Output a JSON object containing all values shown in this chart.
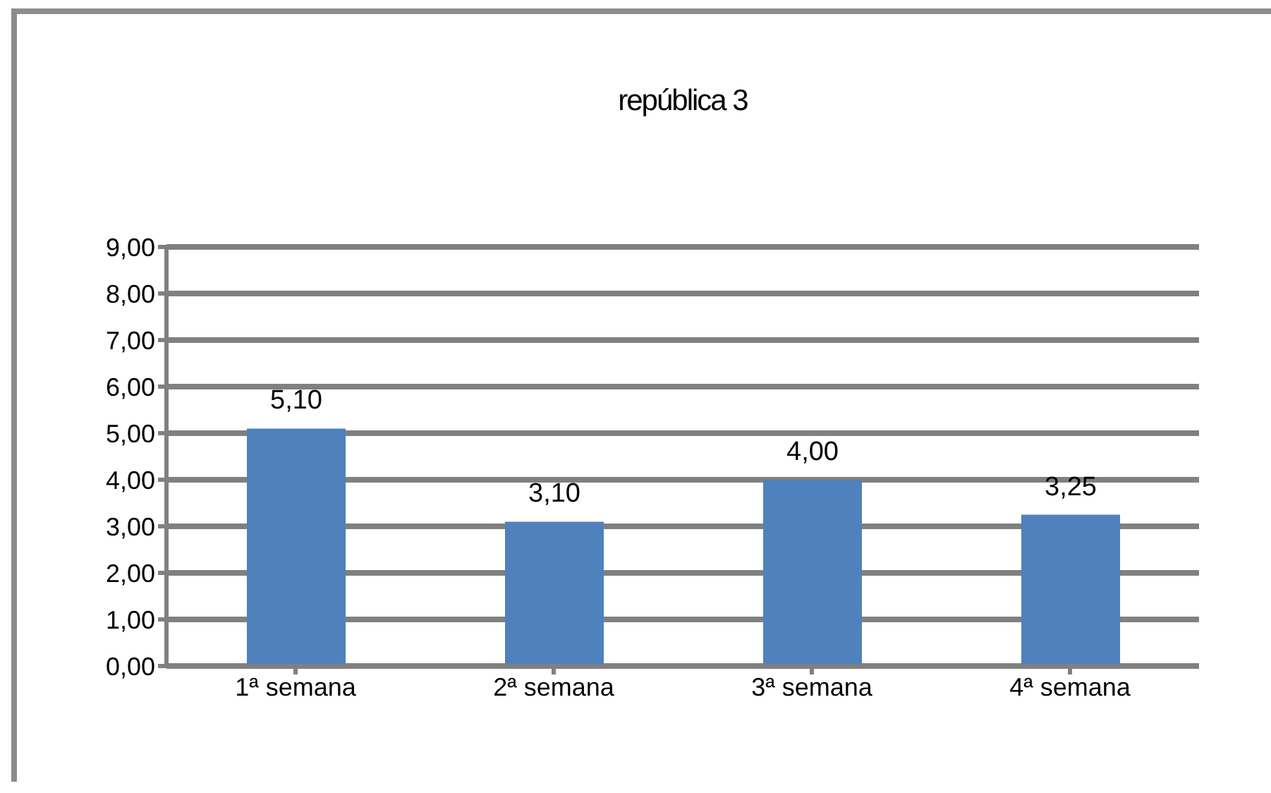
{
  "chart_data": {
    "type": "bar",
    "title": "república 3",
    "categories": [
      "1ª semana",
      "2ª semana",
      "3ª semana",
      "4ª semana"
    ],
    "values": [
      5.1,
      3.1,
      4.0,
      3.25
    ],
    "value_labels": [
      "5,10",
      "3,10",
      "4,00",
      "3,25"
    ],
    "color": "#4f81bd",
    "ylim": [
      0,
      9
    ],
    "yticks": [
      {
        "value": 0,
        "label": "0,00"
      },
      {
        "value": 1,
        "label": "1,00"
      },
      {
        "value": 2,
        "label": "2,00"
      },
      {
        "value": 3,
        "label": "3,00"
      },
      {
        "value": 4,
        "label": "4,00"
      },
      {
        "value": 5,
        "label": "5,00"
      },
      {
        "value": 6,
        "label": "6,00"
      },
      {
        "value": 7,
        "label": "7,00"
      },
      {
        "value": 8,
        "label": "8,00"
      },
      {
        "value": 9,
        "label": "9,00"
      }
    ],
    "grid": "y"
  }
}
